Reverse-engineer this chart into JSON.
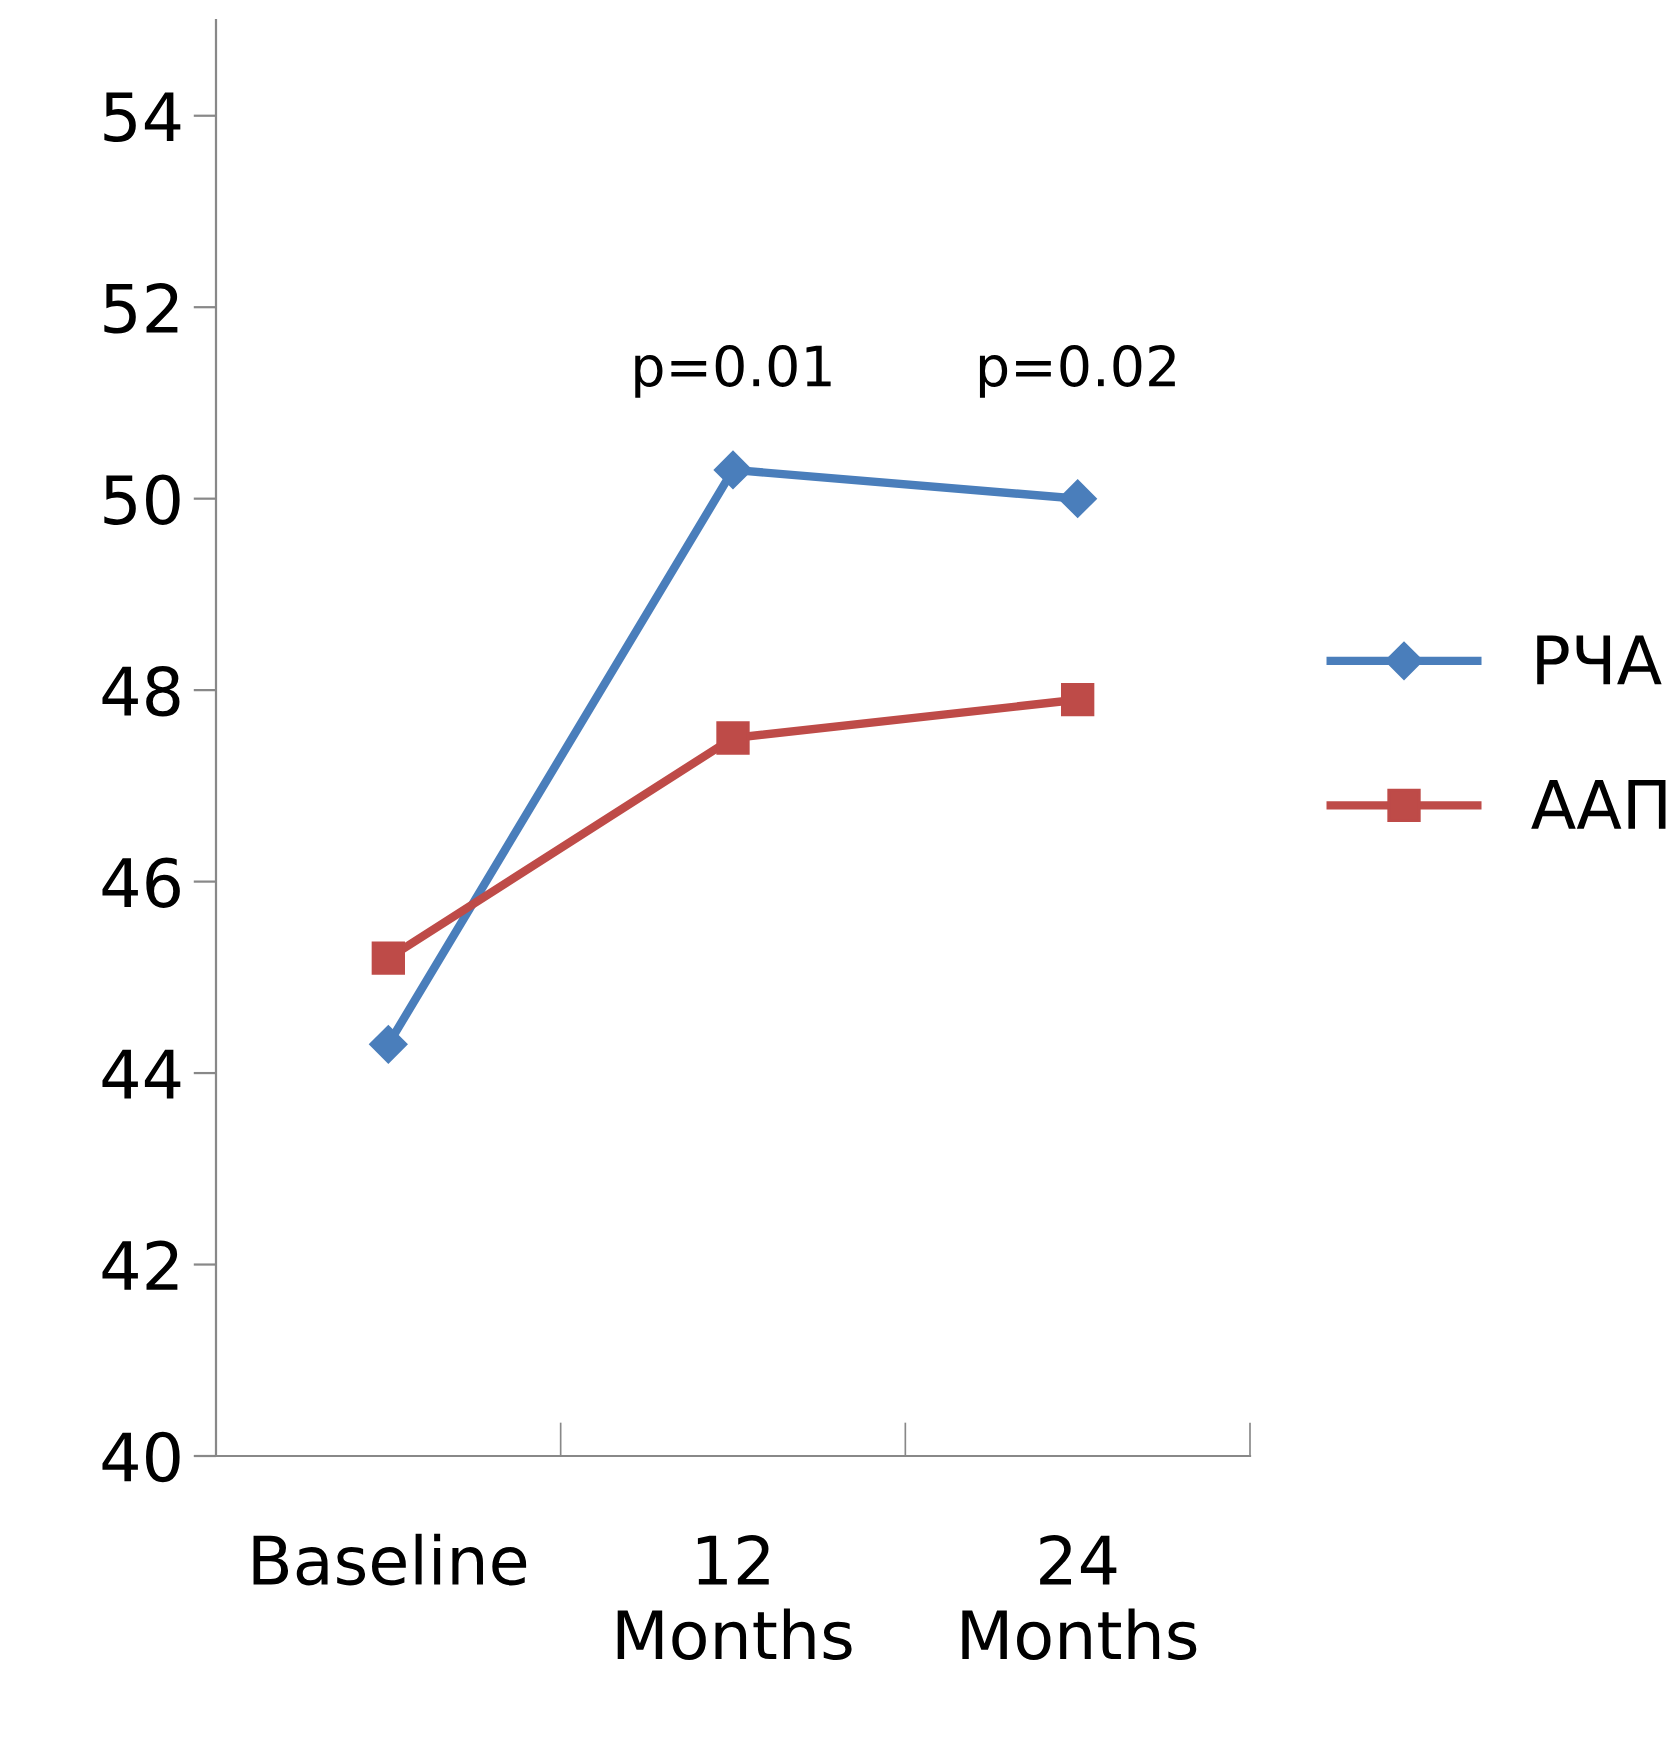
{
  "chart_data": {
    "type": "line",
    "categories": [
      "Baseline",
      "12\nMonths",
      "24\nMonths"
    ],
    "series": [
      {
        "name": "РЧА",
        "color": "#4a7ebb",
        "marker": "diamond",
        "values": [
          44.3,
          50.3,
          50.0
        ]
      },
      {
        "name": "ААП",
        "color": "#be4b48",
        "marker": "square",
        "values": [
          45.2,
          47.5,
          47.9
        ]
      }
    ],
    "ylim": [
      40,
      55
    ],
    "yticks": [
      40,
      42,
      44,
      46,
      48,
      50,
      52,
      54
    ],
    "annotations": [
      "p=0.01",
      "p=0.02"
    ],
    "grid": false,
    "legend": "right",
    "line_style": "solid"
  }
}
